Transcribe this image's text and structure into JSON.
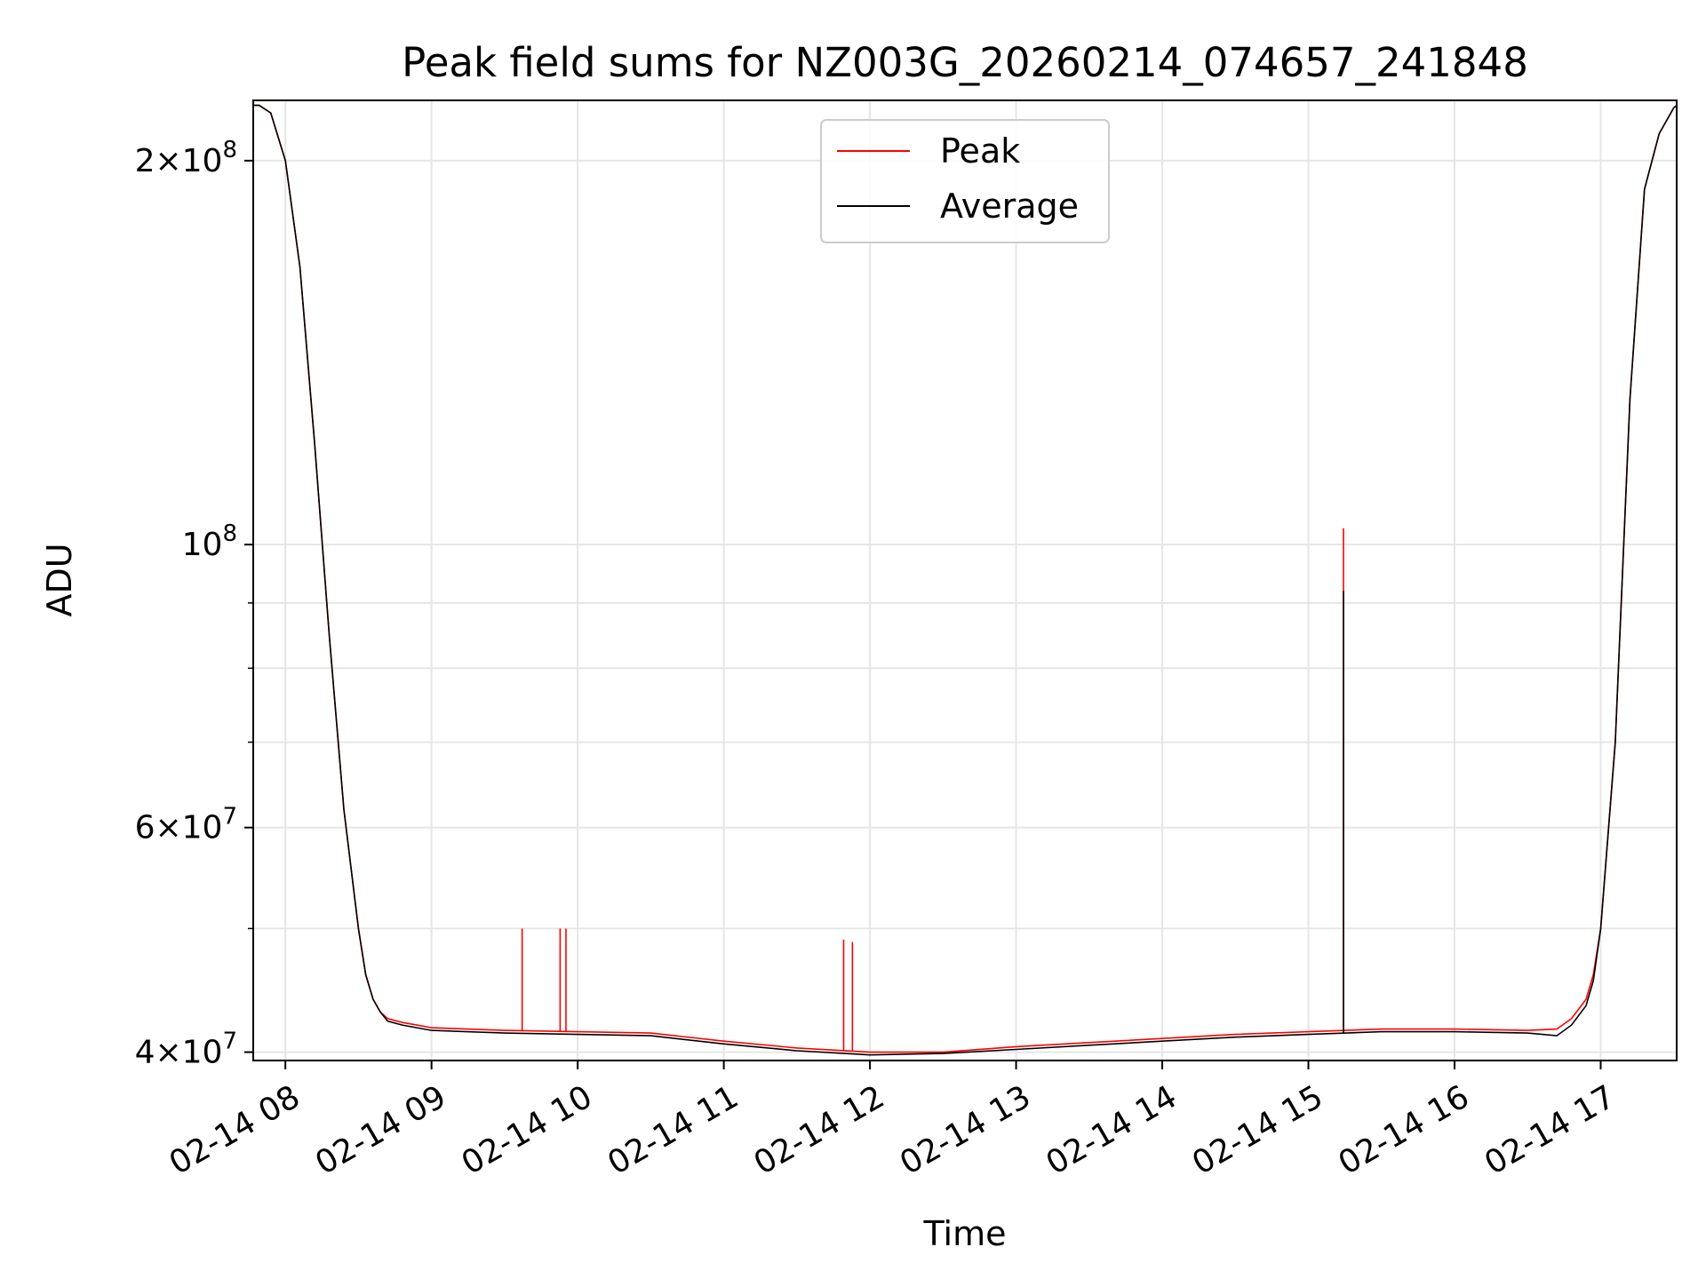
{
  "chart_data": {
    "type": "line",
    "title": "Peak field sums for NZ003G_20260214_074657_241848",
    "xlabel": "Time",
    "ylabel": "ADU",
    "yscale": "log",
    "xlim": [
      7.78,
      17.52
    ],
    "ylim": [
      39400000,
      223000000
    ],
    "grid": true,
    "legend_position": "upper-center",
    "x_ticks": [
      {
        "value": 8,
        "label": "02-14 08"
      },
      {
        "value": 9,
        "label": "02-14 09"
      },
      {
        "value": 10,
        "label": "02-14 10"
      },
      {
        "value": 11,
        "label": "02-14 11"
      },
      {
        "value": 12,
        "label": "02-14 12"
      },
      {
        "value": 13,
        "label": "02-14 13"
      },
      {
        "value": 14,
        "label": "02-14 14"
      },
      {
        "value": 15,
        "label": "02-14 15"
      },
      {
        "value": 16,
        "label": "02-14 16"
      },
      {
        "value": 17,
        "label": "02-14 17"
      }
    ],
    "y_major_ticks": [
      {
        "value": 40000000,
        "mantissa": "4",
        "exponent": "7"
      },
      {
        "value": 60000000,
        "mantissa": "6",
        "exponent": "7"
      },
      {
        "value": 100000000,
        "mantissa": "",
        "exponent": "8"
      },
      {
        "value": 200000000,
        "mantissa": "2",
        "exponent": "8"
      }
    ],
    "y_minor_ticks": [
      50000000,
      70000000,
      80000000,
      90000000
    ],
    "series": [
      {
        "name": "Peak",
        "color": "#ff0000",
        "x": [
          7.78,
          7.82,
          7.9,
          8.0,
          8.1,
          8.2,
          8.3,
          8.4,
          8.5,
          8.55,
          8.6,
          8.65,
          8.7,
          8.8,
          8.9,
          9.0,
          9.5,
          10.0,
          10.5,
          11.0,
          11.5,
          12.0,
          12.5,
          13.0,
          13.5,
          14.0,
          14.5,
          15.0,
          15.5,
          16.0,
          16.5,
          16.7,
          16.8,
          16.9,
          16.95,
          17.0,
          17.1,
          17.2,
          17.3,
          17.4,
          17.5,
          17.52
        ],
        "y": [
          221000000,
          221000000,
          218000000,
          200000000,
          165000000,
          120000000,
          85000000,
          62000000,
          50000000,
          46000000,
          44000000,
          43000000,
          42500000,
          42200000,
          42000000,
          41800000,
          41600000,
          41500000,
          41400000,
          40800000,
          40300000,
          40000000,
          40000000,
          40400000,
          40700000,
          41000000,
          41300000,
          41500000,
          41700000,
          41700000,
          41600000,
          41700000,
          42500000,
          44000000,
          46000000,
          50000000,
          70000000,
          130000000,
          190000000,
          210000000,
          220000000,
          221000000
        ]
      },
      {
        "name": "Average",
        "color": "#000000",
        "x": [
          7.78,
          7.82,
          7.9,
          8.0,
          8.1,
          8.2,
          8.3,
          8.4,
          8.5,
          8.55,
          8.6,
          8.65,
          8.7,
          8.8,
          8.9,
          9.0,
          9.5,
          10.0,
          10.5,
          11.0,
          11.5,
          12.0,
          12.5,
          13.0,
          13.5,
          14.0,
          14.5,
          15.0,
          15.5,
          16.0,
          16.5,
          16.7,
          16.8,
          16.9,
          16.95,
          17.0,
          17.1,
          17.2,
          17.3,
          17.4,
          17.5,
          17.52
        ],
        "y": [
          221000000,
          221000000,
          218000000,
          200000000,
          165000000,
          120000000,
          85000000,
          62000000,
          50000000,
          46000000,
          44000000,
          43000000,
          42300000,
          42000000,
          41800000,
          41600000,
          41400000,
          41300000,
          41200000,
          40600000,
          40100000,
          39800000,
          39900000,
          40200000,
          40500000,
          40800000,
          41100000,
          41300000,
          41500000,
          41500000,
          41400000,
          41200000,
          42000000,
          43500000,
          45500000,
          50000000,
          70000000,
          130000000,
          190000000,
          210000000,
          220000000,
          221000000
        ]
      }
    ],
    "peak_spikes": [
      {
        "x": 9.62,
        "y": 50000000
      },
      {
        "x": 9.88,
        "y": 50000000
      },
      {
        "x": 9.92,
        "y": 50000000
      },
      {
        "x": 11.82,
        "y": 49000000
      },
      {
        "x": 11.88,
        "y": 48800000
      },
      {
        "x": 15.24,
        "y": 103000000
      }
    ],
    "average_spikes": [
      {
        "x": 15.24,
        "y": 92000000
      }
    ]
  }
}
